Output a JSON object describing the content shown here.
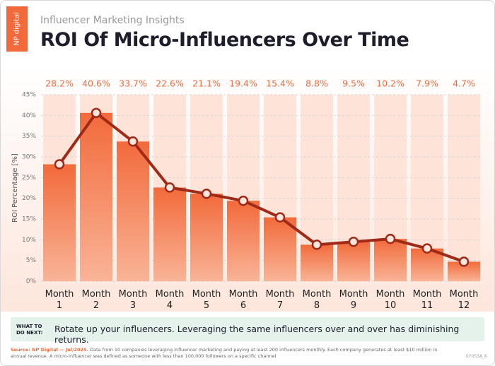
{
  "logo": "NP digital",
  "chart_data": {
    "type": "combo",
    "subtitle": "Influencer Marketing Insights",
    "title": "ROI Of Micro-Influencers Over Time",
    "ylabel": "ROI Percentage [%]",
    "categories": [
      "Month 1",
      "Month 2",
      "Month 3",
      "Month 4",
      "Month 5",
      "Month 6",
      "Month 7",
      "Month 8",
      "Month 9",
      "Month 10",
      "Month 11",
      "Month 12"
    ],
    "values": [
      28.2,
      40.6,
      33.7,
      22.6,
      21.1,
      19.4,
      15.4,
      8.8,
      9.5,
      10.2,
      7.9,
      4.7
    ],
    "value_labels": [
      "28.2%",
      "40.6%",
      "33.7%",
      "22.6%",
      "21.1%",
      "19.4%",
      "15.4%",
      "8.8%",
      "9.5%",
      "10.2%",
      "7.9%",
      "4.7%"
    ],
    "ylim": [
      0,
      45
    ],
    "yticks": [
      {
        "value": 0,
        "label": "0%"
      },
      {
        "value": 5,
        "label": "5%"
      },
      {
        "value": 10,
        "label": "10%"
      },
      {
        "value": 15,
        "label": "15%"
      },
      {
        "value": 20,
        "label": "20%"
      },
      {
        "value": 25,
        "label": "25%"
      },
      {
        "value": 30,
        "label": "30%"
      },
      {
        "value": 35,
        "label": "35%"
      },
      {
        "value": 40,
        "label": "40%"
      },
      {
        "value": 45,
        "label": "45%"
      }
    ],
    "grid": true,
    "color": "#f26a3b",
    "line_color": "#9e2a17"
  },
  "callout": {
    "label": "WHAT TO DO NEXT:",
    "text": "Rotate up your influencers. Leveraging the same influencers over and over has diminishing returns."
  },
  "footer": {
    "source_label": "Source: NP Digital — Jul/2025.",
    "source_text": "Data from 10 companies leveraging influencer marketing and paying at least 200 influencers monthly. Each company generates at least $10 million in annual revenue. A micro-influencer was defined as someone with less than 100,000 followers on a specific channel",
    "code": "07053A_K"
  }
}
